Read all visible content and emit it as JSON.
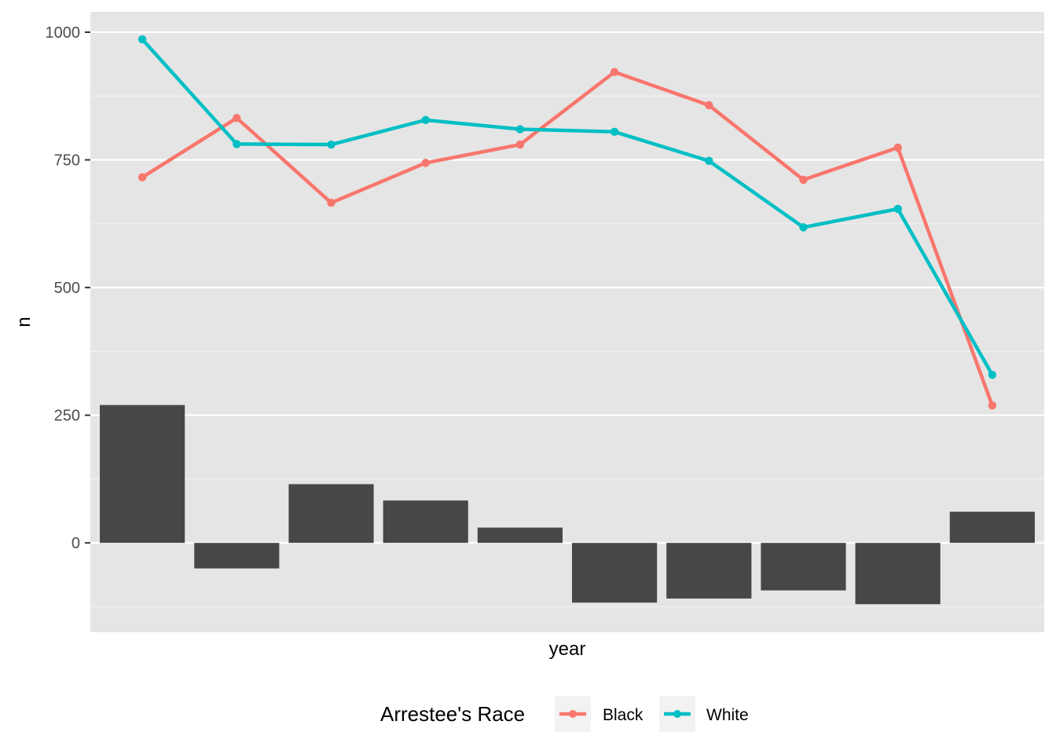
{
  "chart_data": {
    "type": "line",
    "xlabel": "year",
    "ylabel": "n",
    "ylim": [
      -175,
      1040
    ],
    "yticks": [
      0,
      250,
      500,
      750,
      1000
    ],
    "grid": true,
    "x": [
      1,
      2,
      3,
      4,
      5,
      6,
      7,
      8,
      9,
      10
    ],
    "series": [
      {
        "name": "Black",
        "color": "#F8766D",
        "values": [
          716,
          832,
          666,
          744,
          780,
          922,
          857,
          711,
          774,
          269
        ]
      },
      {
        "name": "White",
        "color": "#00BFC4",
        "values": [
          986,
          781,
          780,
          828,
          810,
          805,
          748,
          618,
          654,
          329
        ]
      }
    ],
    "bars": {
      "color": "#474747",
      "values": [
        270,
        -50,
        115,
        83,
        30,
        -117,
        -109,
        -93,
        -120,
        61
      ]
    },
    "legend": {
      "title": "Arrestee's Race",
      "position": "bottom"
    }
  }
}
